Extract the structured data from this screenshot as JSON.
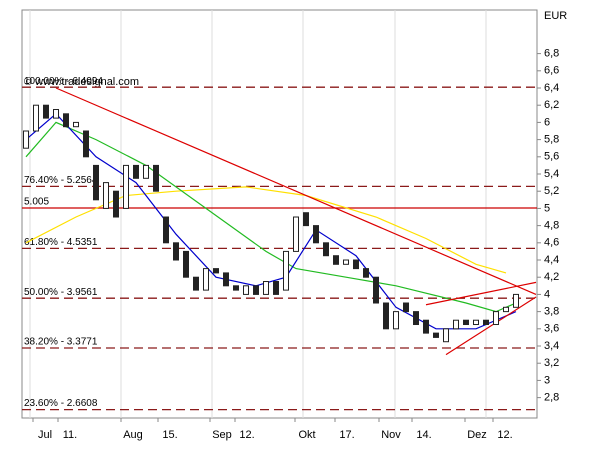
{
  "chart_data": {
    "type": "candlestick",
    "watermark": "© www.tradesignal.com",
    "currency": "EUR",
    "ylim": [
      2.563,
      7.307
    ],
    "yticks": [
      {
        "value": 2.8,
        "label": "2,8"
      },
      3,
      {
        "value": 3.2,
        "label": "3,2"
      },
      {
        "value": 3.4,
        "label": "3,4"
      },
      {
        "value": 3.6,
        "label": "3,6"
      },
      {
        "value": 3.8,
        "label": "3,8"
      },
      4,
      {
        "value": 4.2,
        "label": "4,2"
      },
      {
        "value": 4.4,
        "label": "4,4"
      },
      {
        "value": 4.6,
        "label": "4,6"
      },
      {
        "value": 4.8,
        "label": "4,8"
      },
      5,
      {
        "value": 5.2,
        "label": "5,2"
      },
      {
        "value": 5.4,
        "label": "5,4"
      },
      {
        "value": 5.6,
        "label": "5,6"
      },
      {
        "value": 5.8,
        "label": "5,8"
      },
      6,
      {
        "value": 6.2,
        "label": "6,2"
      },
      {
        "value": 6.4,
        "label": "6,4"
      },
      {
        "value": 6.6,
        "label": "6,6"
      },
      {
        "value": 6.8,
        "label": "6,8"
      }
    ],
    "xtick_labels": [
      "Jul",
      "11.",
      "Aug",
      "15.",
      "Sep",
      "12.",
      "Okt",
      "17.",
      "Nov",
      "14.",
      "Dez",
      "12."
    ],
    "levels": [
      {
        "label": "100.00% - 6.4094",
        "value": 6.4094,
        "color": "#8b1a1a",
        "dashed": true
      },
      {
        "label": "76.40% - 5.2564",
        "value": 5.2564,
        "color": "#8b1a1a",
        "dashed": true
      },
      {
        "label": "5.005",
        "value": 5.005,
        "color": "#cc0000",
        "dashed": false
      },
      {
        "label": "61.80% - 4.5351",
        "value": 4.5351,
        "color": "#8b1a1a",
        "dashed": true
      },
      {
        "label": "50.00% - 3.9561",
        "value": 3.9561,
        "color": "#8b1a1a",
        "dashed": true
      },
      {
        "label": "38.20% - 3.3771",
        "value": 3.3771,
        "color": "#8b1a1a",
        "dashed": true
      },
      {
        "label": "23.60% - 2.6608",
        "value": 2.6608,
        "color": "#8b1a1a",
        "dashed": true
      }
    ],
    "candles": {
      "open": [
        5.7,
        5.9,
        6.2,
        6.05,
        6.1,
        5.95,
        5.9,
        5.5,
        5.0,
        5.2,
        5.0,
        5.5,
        5.35,
        5.5,
        4.9,
        4.6,
        4.5,
        4.2,
        4.05,
        4.3,
        4.25,
        4.1,
        4.0,
        4.1,
        4.0,
        4.15,
        4.05,
        4.5,
        4.95,
        4.8,
        4.6,
        4.45,
        4.35,
        4.4,
        4.3,
        4.2,
        3.9,
        3.6,
        3.9,
        3.8,
        3.7,
        3.55,
        3.45,
        3.6,
        3.7,
        3.65,
        3.7,
        3.65,
        3.8,
        3.85
      ],
      "close": [
        5.9,
        6.2,
        6.05,
        6.15,
        5.95,
        6.0,
        5.6,
        5.1,
        5.3,
        4.9,
        5.5,
        5.35,
        5.5,
        5.2,
        4.6,
        4.4,
        4.2,
        4.05,
        4.3,
        4.25,
        4.1,
        4.05,
        4.1,
        4.0,
        4.15,
        4.0,
        4.5,
        4.9,
        4.8,
        4.6,
        4.45,
        4.35,
        4.4,
        4.3,
        4.2,
        3.9,
        3.6,
        3.8,
        3.8,
        3.65,
        3.55,
        3.5,
        3.6,
        3.7,
        3.65,
        3.7,
        3.65,
        3.8,
        3.85,
        4.0
      ]
    },
    "series": [
      {
        "color": "#ffe000",
        "x": [
          0,
          5,
          10,
          15,
          22,
          28,
          35,
          40,
          45,
          48
        ],
        "values": [
          4.6,
          4.9,
          5.15,
          5.2,
          5.25,
          5.15,
          4.9,
          4.65,
          4.35,
          4.25
        ]
      },
      {
        "color": "#22bb22",
        "x": [
          0,
          3,
          7,
          12,
          18,
          24,
          27,
          32,
          37,
          44,
          47,
          49
        ],
        "values": [
          5.6,
          6.0,
          5.8,
          5.5,
          5.0,
          4.5,
          4.3,
          4.2,
          4.1,
          3.9,
          3.8,
          3.9
        ]
      },
      {
        "color": "#0000cc",
        "x": [
          0,
          3,
          7,
          11,
          15,
          19,
          23,
          26,
          29,
          33,
          37,
          41,
          45,
          49
        ],
        "values": [
          5.8,
          6.1,
          5.6,
          5.3,
          4.7,
          4.2,
          4.1,
          4.2,
          4.75,
          4.45,
          3.85,
          3.6,
          3.6,
          3.8
        ]
      }
    ],
    "trendlines": [
      {
        "color": "#dd0000",
        "x": [
          3,
          51
        ],
        "values": [
          6.4,
          4.0
        ]
      },
      {
        "color": "#dd0000",
        "x": [
          40,
          51
        ],
        "values": [
          3.88,
          4.14
        ]
      },
      {
        "color": "#dd0000",
        "x": [
          42,
          51
        ],
        "values": [
          3.3,
          3.97
        ]
      }
    ],
    "up_color": "#ffffff",
    "down_color": "#222222"
  }
}
